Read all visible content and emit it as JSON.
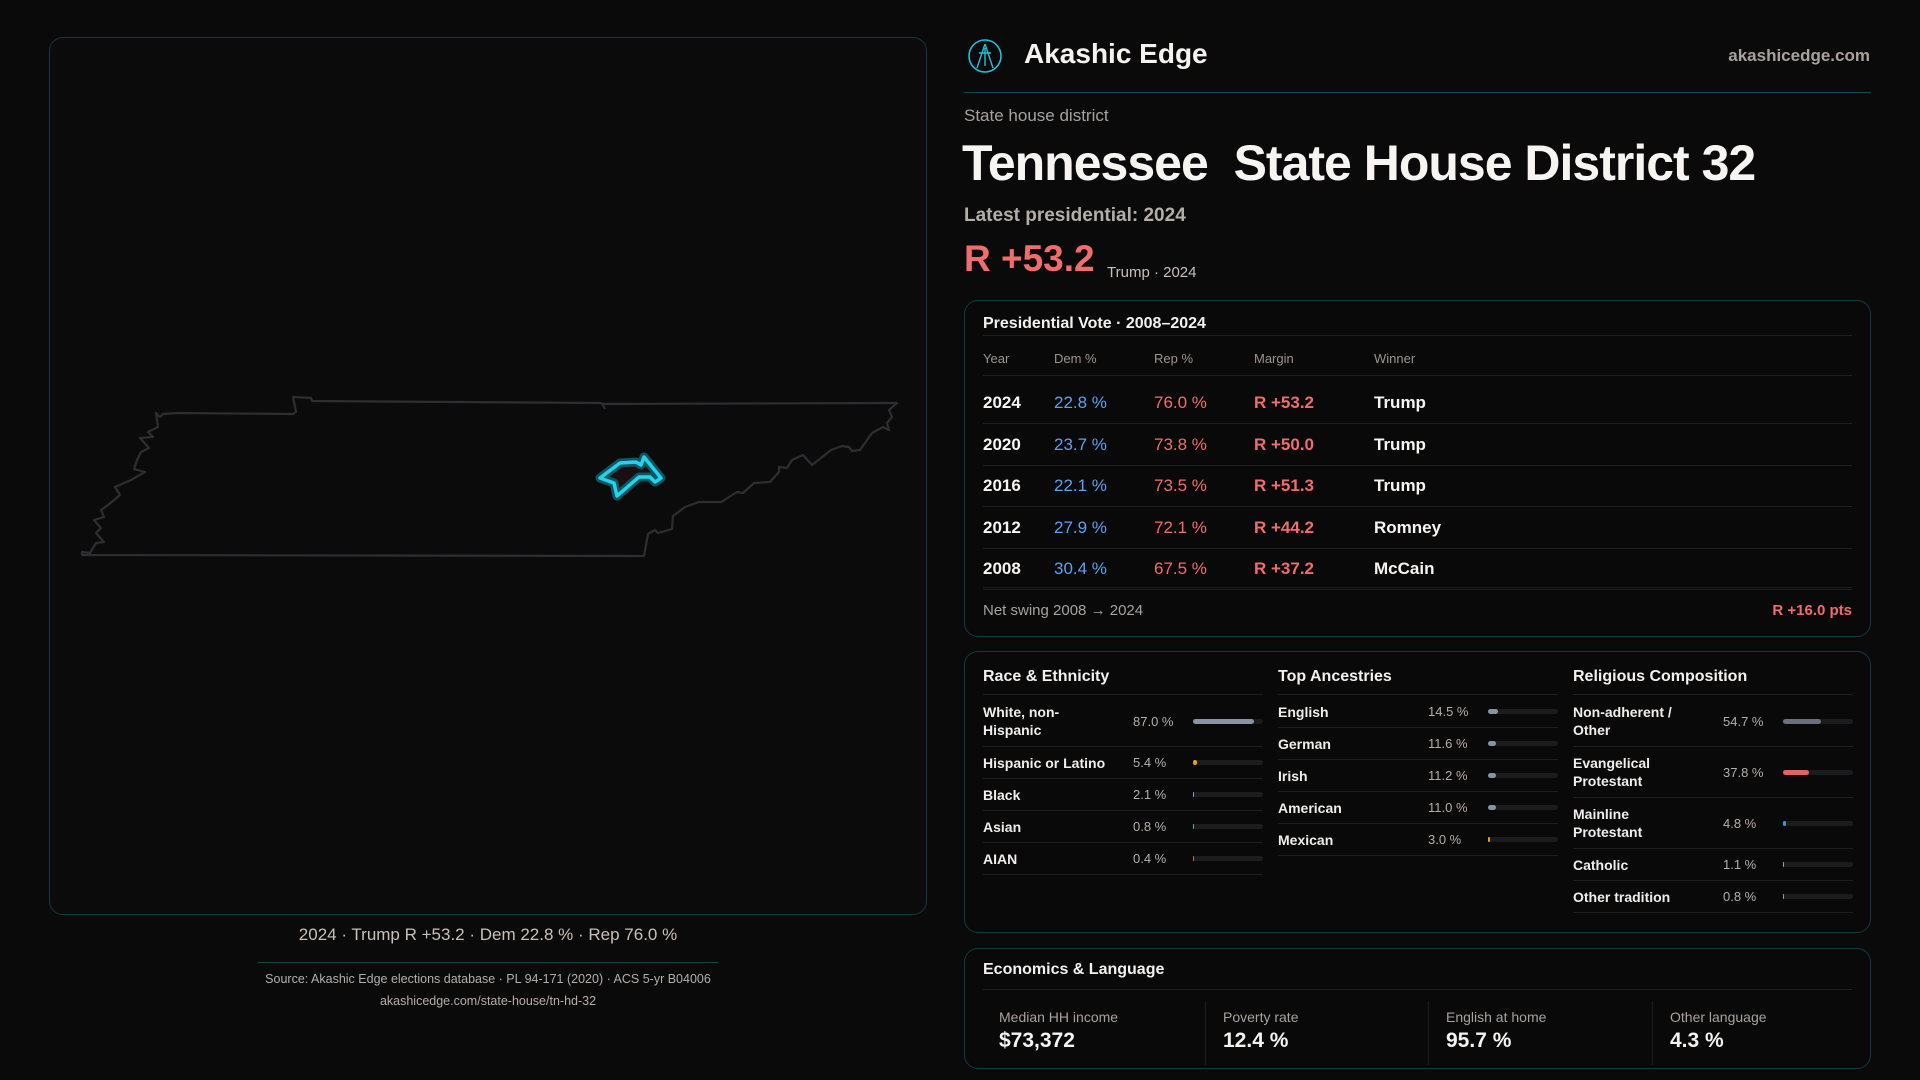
{
  "brand": {
    "name": "Akashic Edge",
    "site": "akashicedge.com",
    "logo": "akashic-edge-logo"
  },
  "header": {
    "kind": "State house district",
    "state": "Tennessee",
    "district": "State House District 32",
    "latest": "Latest presidential: 2024",
    "margin": "R +53.2",
    "margin_sub": "Trump · 2024"
  },
  "map": {
    "caption": "2024 · Trump R +53.2 · Dem 22.8 % · Rep 76.0 %",
    "highlight_color": "#22d3ee",
    "outline_color": "#2e2e30"
  },
  "colors": {
    "dem": "#5ea0f0",
    "rep": "#f06d6d",
    "accent": "#22d3ee"
  },
  "presidential": {
    "title": "Presidential Vote · 2008–2024",
    "headers": [
      "Year",
      "Dem %",
      "Rep %",
      "Margin",
      "Winner"
    ],
    "rows": [
      [
        "2024",
        "22.8 %",
        "76.0 %",
        "R +53.2",
        "Trump"
      ],
      [
        "2020",
        "23.7 %",
        "73.8 %",
        "R +50.0",
        "Trump"
      ],
      [
        "2016",
        "22.1 %",
        "73.5 %",
        "R +51.3",
        "Trump"
      ],
      [
        "2012",
        "27.9 %",
        "72.1 %",
        "R +44.2",
        "Romney"
      ],
      [
        "2008",
        "30.4 %",
        "67.5 %",
        "R +37.2",
        "McCain"
      ]
    ],
    "swing_label": "Net swing 2008 → 2024",
    "swing_value": "R +16.0 pts"
  },
  "demographics": [
    {
      "title": "Race & Ethnicity",
      "items": [
        {
          "label": "White, non-Hispanic",
          "value": "87.0 %",
          "pct": 87.0,
          "color": "#8a93a3"
        },
        {
          "label": "Hispanic or Latino",
          "value": "5.4 %",
          "pct": 5.4,
          "color": "#e0a020"
        },
        {
          "label": "Black",
          "value": "2.1 %",
          "pct": 2.1,
          "color": "#9a8ae0"
        },
        {
          "label": "Asian",
          "value": "0.8 %",
          "pct": 0.8,
          "color": "#3ac08a"
        },
        {
          "label": "AIAN",
          "value": "0.4 %",
          "pct": 0.4,
          "color": "#d07020"
        }
      ]
    },
    {
      "title": "Top Ancestries",
      "items": [
        {
          "label": "English",
          "value": "14.5 %",
          "pct": 14.5,
          "color": "#8a93a3"
        },
        {
          "label": "German",
          "value": "11.6 %",
          "pct": 11.6,
          "color": "#8a93a3"
        },
        {
          "label": "Irish",
          "value": "11.2 %",
          "pct": 11.2,
          "color": "#8a93a3"
        },
        {
          "label": "American",
          "value": "11.0 %",
          "pct": 11.0,
          "color": "#8a93a3"
        },
        {
          "label": "Mexican",
          "value": "3.0 %",
          "pct": 3.0,
          "color": "#e0a020"
        }
      ]
    },
    {
      "title": "Religious Composition",
      "items": [
        {
          "label": "Non-adherent / Other",
          "value": "54.7 %",
          "pct": 54.7,
          "color": "#6b7080"
        },
        {
          "label": "Evangelical Protestant",
          "value": "37.8 %",
          "pct": 37.8,
          "color": "#e06464"
        },
        {
          "label": "Mainline Protestant",
          "value": "4.8 %",
          "pct": 4.8,
          "color": "#4a90e0"
        },
        {
          "label": "Catholic",
          "value": "1.1 %",
          "pct": 1.1,
          "color": "#d0a020"
        },
        {
          "label": "Other tradition",
          "value": "0.8 %",
          "pct": 0.8,
          "color": "#9a9a9a"
        }
      ]
    }
  ],
  "economics": {
    "title": "Economics & Language",
    "stats": [
      {
        "label": "Median HH income",
        "value": "$73,372"
      },
      {
        "label": "Poverty rate",
        "value": "12.4 %"
      },
      {
        "label": "English at home",
        "value": "95.7 %"
      },
      {
        "label": "Other language",
        "value": "4.3 %"
      }
    ]
  },
  "footer": {
    "source": "Source: Akashic Edge elections database · PL 94-171 (2020) · ACS 5-yr B04006",
    "url": "akashicedge.com/state-house/tn-hd-32"
  }
}
